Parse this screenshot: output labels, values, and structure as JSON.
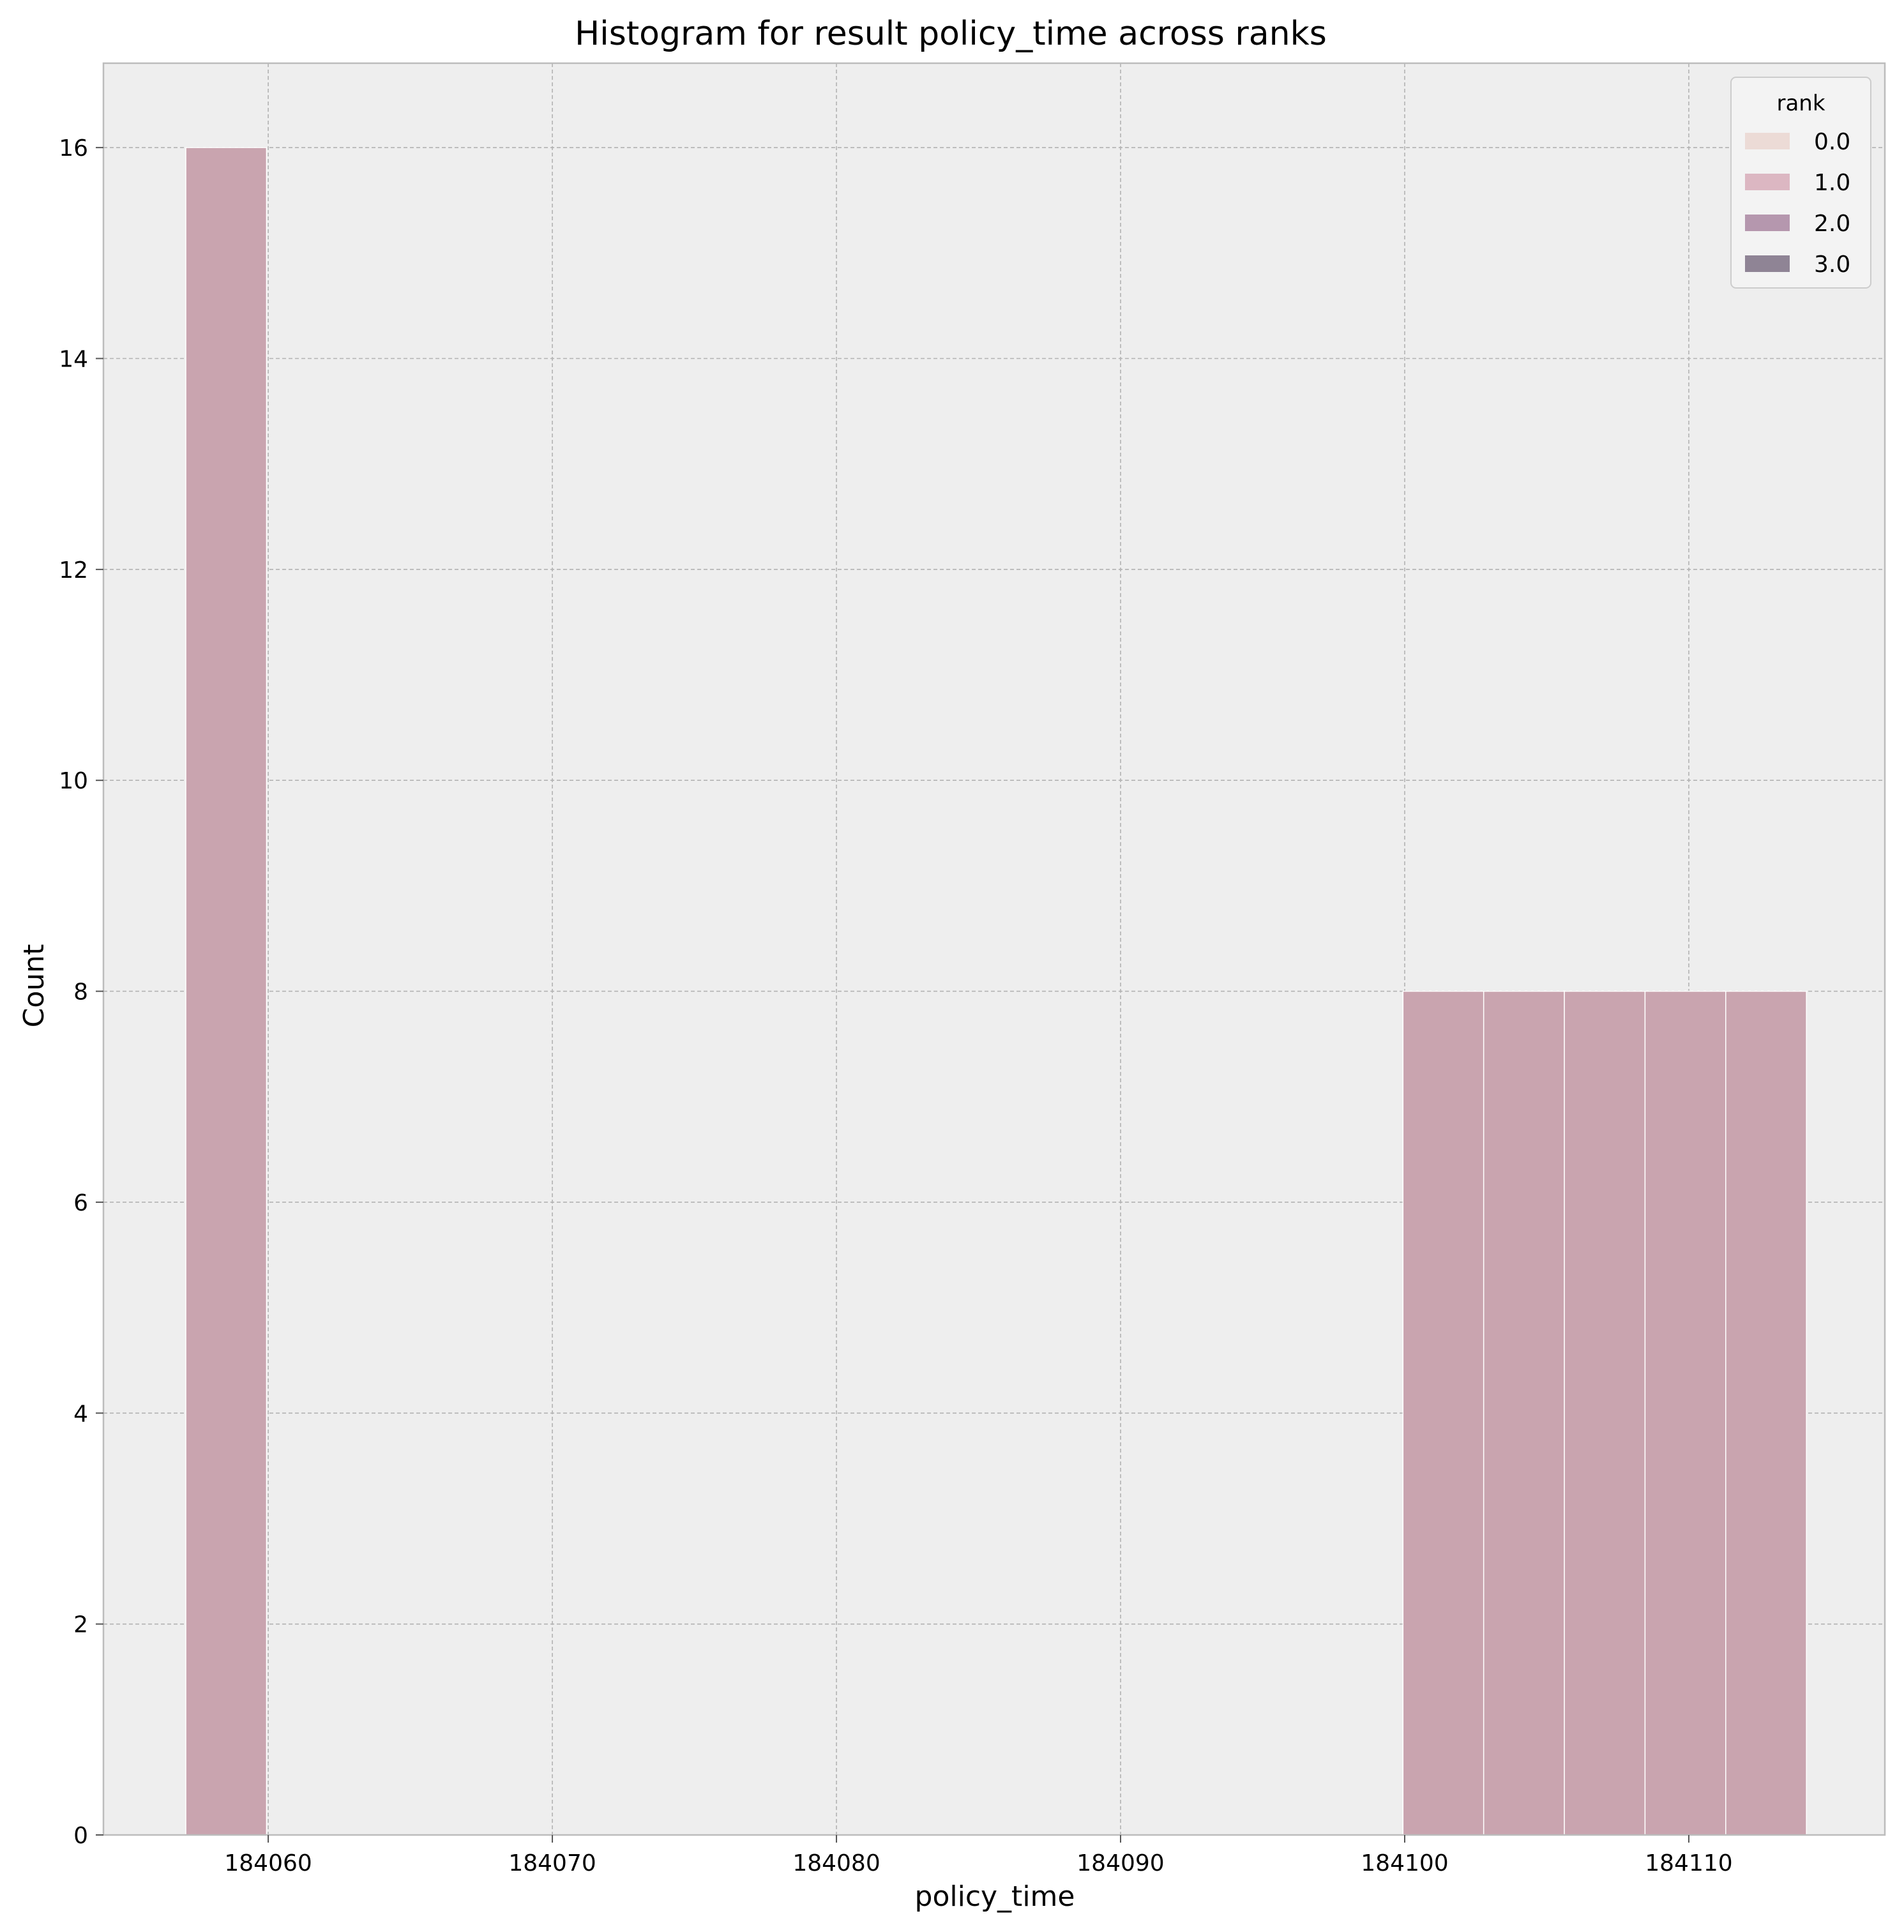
{
  "chart_data": {
    "type": "bar",
    "title": "Histogram for result policy_time across ranks",
    "xlabel": "policy_time",
    "ylabel": "Count",
    "xlim": [
      184054.2,
      184116.9
    ],
    "ylim": [
      0,
      16.8
    ],
    "xticks": [
      184060,
      184070,
      184080,
      184090,
      184100,
      184110
    ],
    "yticks": [
      0,
      2,
      4,
      6,
      8,
      10,
      12,
      14,
      16
    ],
    "grid": true,
    "bins": [
      {
        "x0": 184057.1,
        "x1": 184059.94,
        "count": 16
      },
      {
        "x0": 184099.94,
        "x1": 184102.78,
        "count": 8
      },
      {
        "x0": 184102.78,
        "x1": 184105.62,
        "count": 8
      },
      {
        "x0": 184105.62,
        "x1": 184108.46,
        "count": 8
      },
      {
        "x0": 184108.46,
        "x1": 184111.3,
        "count": 8
      },
      {
        "x0": 184111.3,
        "x1": 184114.14,
        "count": 8
      }
    ],
    "bar_color": "#c9a4af",
    "legend": {
      "title": "rank",
      "position": "top-right",
      "entries": [
        {
          "label": "0.0",
          "color": "#ecdbd6"
        },
        {
          "label": "1.0",
          "color": "#dcb7c2"
        },
        {
          "label": "2.0",
          "color": "#b597ae"
        },
        {
          "label": "3.0",
          "color": "#8f8495"
        }
      ]
    }
  }
}
